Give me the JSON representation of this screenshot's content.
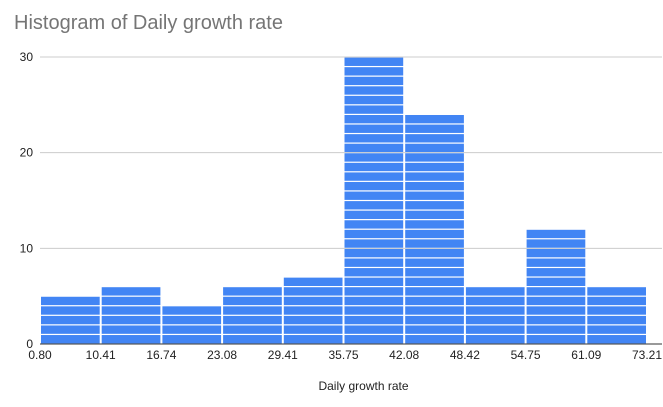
{
  "chart_data": {
    "type": "bar",
    "subtype": "histogram",
    "title": "Histogram of Daily growth rate",
    "xlabel": "Daily growth rate",
    "ylabel": "",
    "bin_edges": [
      "0.80",
      "10.41",
      "16.74",
      "23.08",
      "29.41",
      "35.75",
      "42.08",
      "48.42",
      "54.75",
      "61.09",
      "73.21"
    ],
    "values": [
      5,
      6,
      4,
      6,
      7,
      30,
      24,
      6,
      12,
      6
    ],
    "y_ticks": [
      0,
      10,
      20,
      30
    ],
    "ylim": [
      0,
      30
    ],
    "grid": true,
    "legend": "none",
    "bar_color": "#4285f4",
    "grid_color": "#cccccc",
    "title_color": "#757575"
  }
}
